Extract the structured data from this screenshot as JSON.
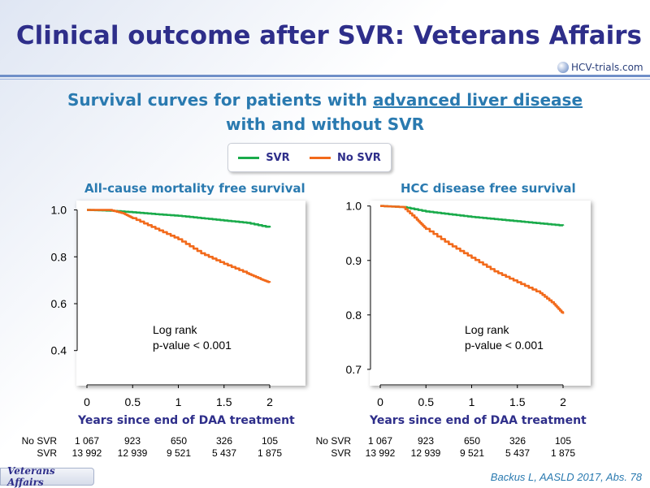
{
  "slide": {
    "title": "Clinical outcome after SVR: Veterans Affairs",
    "logo_text": "HCV-trials.com",
    "subtitle_part1": "Survival curves for patients with ",
    "subtitle_underlined": "advanced liver disease",
    "subtitle_line2": "with and without SVR",
    "footer_tag": "Veterans Affairs",
    "citation": "Backus L, AASLD 2017, Abs. 78"
  },
  "legend": [
    {
      "label": "SVR",
      "color": "#1aab4b"
    },
    {
      "label": "No SVR",
      "color": "#f26a1b"
    }
  ],
  "risk_table": {
    "rows": [
      {
        "label": "No SVR",
        "values": [
          "1 067",
          "923",
          "650",
          "326",
          "105"
        ]
      },
      {
        "label": "SVR",
        "values": [
          "13 992",
          "12 939",
          "9 521",
          "5 437",
          "1 875"
        ]
      }
    ]
  },
  "chart_data": [
    {
      "type": "line",
      "title": "All-cause mortality free survival",
      "xlabel": "Years since end of DAA treatment",
      "ylabel": "",
      "xlim": [
        0,
        2
      ],
      "ylim": [
        0.25,
        1.04
      ],
      "x_ticks": [
        "0",
        "0.5",
        "1",
        "1.5",
        "2"
      ],
      "y_ticks": [
        "1.0",
        "0.8",
        "0.6",
        "0.4"
      ],
      "y_tick_values": [
        1.0,
        0.8,
        0.6,
        0.4
      ],
      "annotation": [
        "Log rank",
        "p-value < 0.001"
      ],
      "series": [
        {
          "name": "SVR",
          "color": "#1aab4b",
          "x": [
            0,
            0.25,
            0.5,
            0.75,
            1.0,
            1.25,
            1.5,
            1.75,
            2.0
          ],
          "y": [
            1.0,
            0.997,
            0.99,
            0.982,
            0.975,
            0.965,
            0.955,
            0.945,
            0.925
          ]
        },
        {
          "name": "No SVR",
          "color": "#f26a1b",
          "x": [
            0,
            0.25,
            0.4,
            0.5,
            0.75,
            1.0,
            1.25,
            1.5,
            1.75,
            1.9,
            2.0
          ],
          "y": [
            1.0,
            1.0,
            0.985,
            0.965,
            0.92,
            0.875,
            0.815,
            0.77,
            0.73,
            0.705,
            0.69
          ]
        }
      ]
    },
    {
      "type": "line",
      "title": "HCC disease free survival",
      "xlabel": "Years since end of DAA treatment",
      "ylabel": "",
      "xlim": [
        0,
        2
      ],
      "ylim": [
        0.67,
        1.01
      ],
      "x_ticks": [
        "0",
        "0.5",
        "1",
        "1.5",
        "2"
      ],
      "y_ticks": [
        "1.0",
        "0.9",
        "0.8",
        "0.7"
      ],
      "y_tick_values": [
        1.0,
        0.9,
        0.8,
        0.7
      ],
      "annotation": [
        "Log rank",
        "p-value < 0.001"
      ],
      "series": [
        {
          "name": "SVR",
          "color": "#1aab4b",
          "x": [
            0,
            0.25,
            0.5,
            0.75,
            1.0,
            1.25,
            1.5,
            1.75,
            2.0
          ],
          "y": [
            1.0,
            0.998,
            0.99,
            0.985,
            0.98,
            0.976,
            0.972,
            0.968,
            0.964
          ]
        },
        {
          "name": "No SVR",
          "color": "#f26a1b",
          "x": [
            0,
            0.25,
            0.4,
            0.5,
            0.75,
            1.0,
            1.25,
            1.5,
            1.75,
            1.9,
            2.0
          ],
          "y": [
            1.0,
            0.998,
            0.975,
            0.958,
            0.93,
            0.905,
            0.88,
            0.86,
            0.84,
            0.82,
            0.802
          ]
        }
      ]
    }
  ]
}
